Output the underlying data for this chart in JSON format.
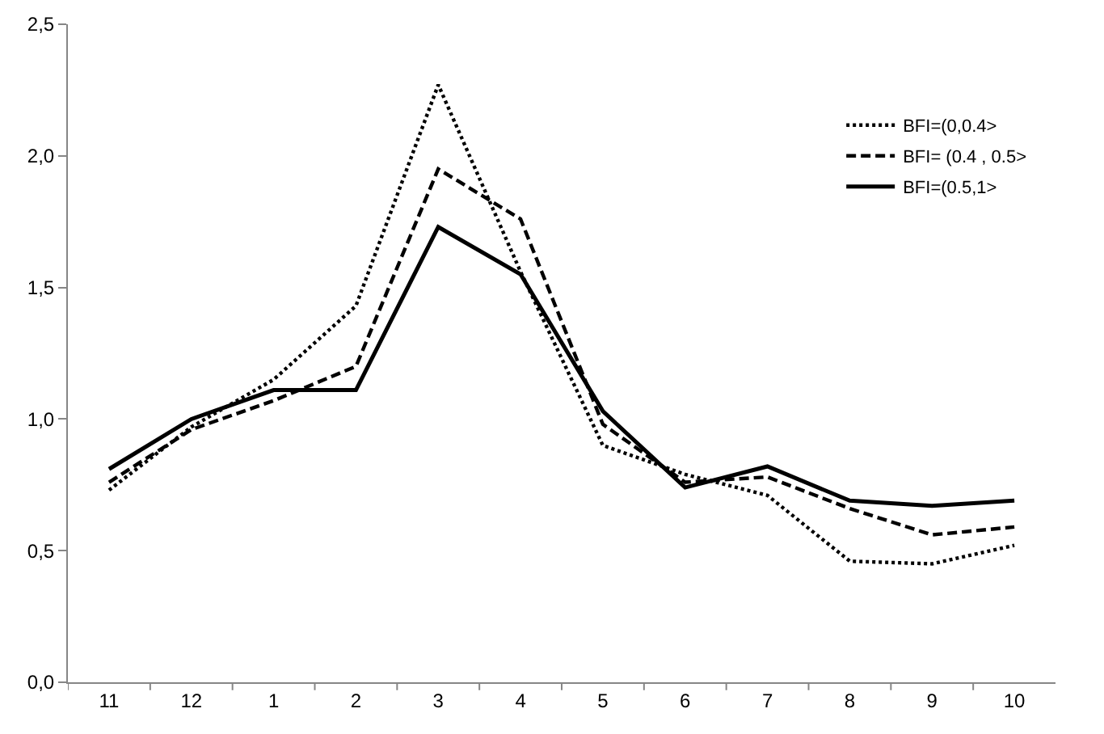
{
  "chart_data": {
    "type": "line",
    "categories": [
      "11",
      "12",
      "1",
      "2",
      "3",
      "4",
      "5",
      "6",
      "7",
      "8",
      "9",
      "10"
    ],
    "ylim": [
      0,
      2.5
    ],
    "yticks": [
      {
        "value": 0,
        "label": "0,0"
      },
      {
        "value": 0.5,
        "label": "0,5"
      },
      {
        "value": 1,
        "label": "1,0"
      },
      {
        "value": 1.5,
        "label": "1,5"
      },
      {
        "value": 2,
        "label": "2,0"
      },
      {
        "value": 2.5,
        "label": "2,5"
      }
    ],
    "grid": false,
    "legend": "right",
    "marker": "none",
    "series": [
      {
        "name": "BFI=(0,0.4>",
        "color": "#000000",
        "line_style": "dotted",
        "values": [
          0.73,
          0.97,
          1.15,
          1.43,
          2.27,
          1.56,
          0.9,
          0.79,
          0.71,
          0.46,
          0.45,
          0.52
        ]
      },
      {
        "name": "BFI= (0.4 , 0.5>",
        "color": "#000000",
        "line_style": "dashed",
        "values": [
          0.76,
          0.96,
          1.07,
          1.2,
          1.95,
          1.76,
          0.98,
          0.76,
          0.78,
          0.66,
          0.56,
          0.59
        ]
      },
      {
        "name": "BFI=(0.5,1>",
        "color": "#000000",
        "line_style": "solid",
        "values": [
          0.81,
          1.0,
          1.11,
          1.11,
          1.73,
          1.55,
          1.03,
          0.74,
          0.82,
          0.69,
          0.67,
          0.69
        ]
      }
    ]
  }
}
